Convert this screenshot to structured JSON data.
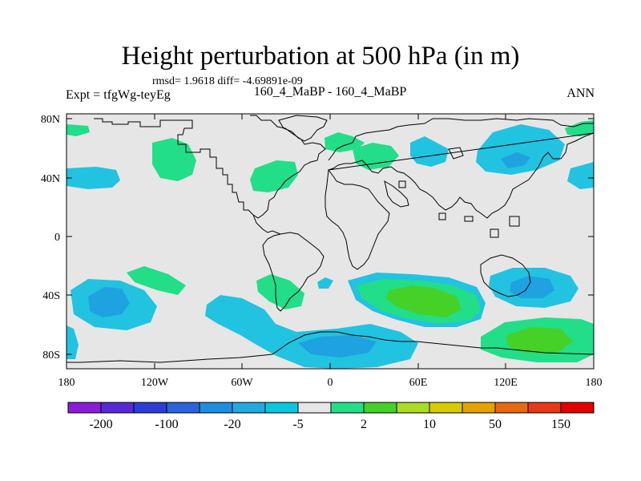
{
  "plot": {
    "title": "Height perturbation at 500 hPa (in m)",
    "stats": "rmsd= 1.9618 diff= -4.69891e-09",
    "experiment": "Expt = tfgWg-teyEg",
    "case": "160_4_MaBP - 160_4_MaBP",
    "season": "ANN"
  },
  "map": {
    "projection": "cylindrical equidistant",
    "lon_range": [
      -180,
      180
    ],
    "lat_range": [
      -90,
      90
    ],
    "lat_tick_labels": [
      "80N",
      "40N",
      "0",
      "40S",
      "80S"
    ],
    "lon_tick_labels": [
      "180",
      "120W",
      "60W",
      "0",
      "60E",
      "120E",
      "180"
    ],
    "background_color": "#e6e6e6",
    "coastline_color": "#000000"
  },
  "colorbar": {
    "colors": [
      "#8a1ed8",
      "#5a28d6",
      "#2c3ed8",
      "#2a64dc",
      "#1e8ee0",
      "#22aae0",
      "#0ac6df",
      "#e6e6e6",
      "#22df88",
      "#45d128",
      "#aadd22",
      "#d8cb00",
      "#e6a300",
      "#e86a10",
      "#e83818",
      "#e30000"
    ],
    "labels": [
      "-200",
      "-100",
      "-20",
      "-5",
      "2",
      "10",
      "50",
      "150"
    ]
  },
  "field_colors": {
    "cyan": "#22c3e0",
    "blue": "#1ea2e0",
    "darkblue": "#1b84d8",
    "green": "#22de88",
    "darkgreen": "#45d128"
  }
}
